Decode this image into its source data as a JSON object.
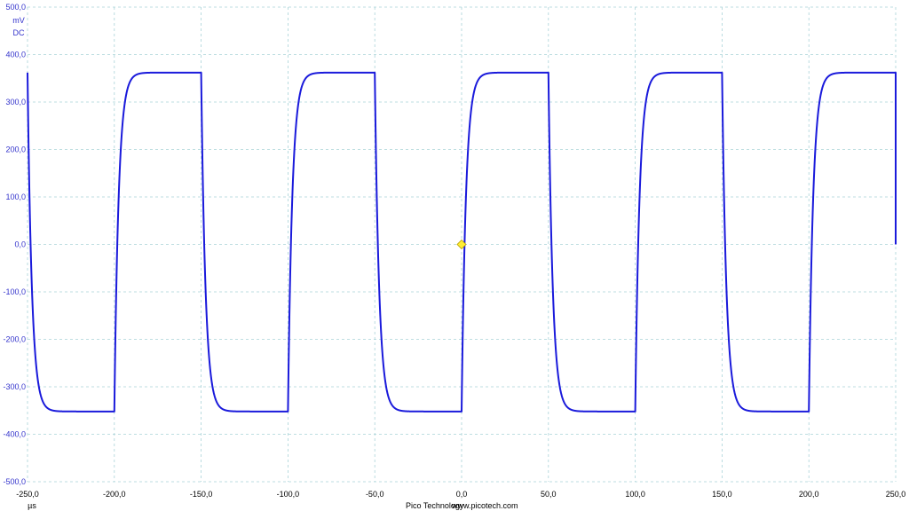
{
  "chart_data": {
    "type": "line",
    "x_unit": "µs",
    "y_unit": "mV",
    "coupling": "DC",
    "xlim": [
      -250,
      250
    ],
    "ylim": [
      -500,
      500
    ],
    "x_ticks": [
      -250,
      -200,
      -150,
      -100,
      -50,
      0,
      50,
      100,
      150,
      200,
      250
    ],
    "x_tick_labels": [
      "-250,0",
      "-200,0",
      "-150,0",
      "-100,0",
      "-50,0",
      "0,0",
      "50,0",
      "100,0",
      "150,0",
      "200,0",
      "250,0"
    ],
    "y_ticks": [
      500,
      400,
      300,
      200,
      100,
      0,
      -100,
      -200,
      -300,
      -400,
      -500
    ],
    "y_tick_labels": [
      "500,0",
      "400,0",
      "300,0",
      "200,0",
      "100,0",
      "0,0",
      "-100,0",
      "-200,0",
      "-300,0",
      "-400,0",
      "-500,0"
    ],
    "grid": true,
    "series": [
      {
        "color": "#1a1adb",
        "waveform": "square",
        "period_us": 100,
        "high_mv": 362,
        "low_mv": -352,
        "rising_edges_us": [
          -200,
          -100,
          0,
          100,
          200
        ],
        "falling_edges_us": [
          -250,
          -150,
          -50,
          50,
          150,
          250
        ],
        "settle_time_constant_us": 2.5
      }
    ],
    "trigger": {
      "x": 0,
      "y": 0,
      "color": "#ffee33"
    }
  },
  "footer": {
    "brand": "Pico Technology",
    "website": "www.picotech.com"
  }
}
